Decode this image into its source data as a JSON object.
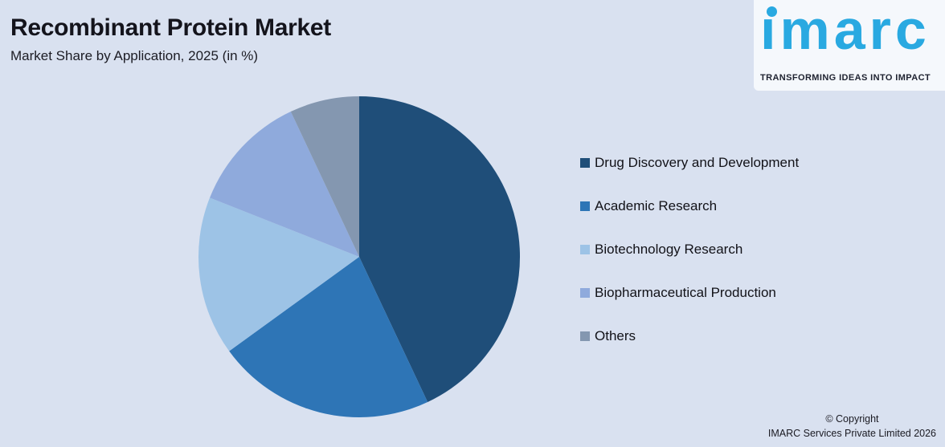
{
  "background_color": "#D9E1F0",
  "header": {
    "title": "Recombinant Protein Market",
    "subtitle": "Market Share by Application, 2025 (in %)"
  },
  "logo": {
    "brand": "ımarc",
    "brand_display": "imarc",
    "tagline": "TRANSFORMING IDEAS INTO IMPACT",
    "brand_color": "#29A9E1"
  },
  "chart_data": {
    "type": "pie",
    "title": "Recombinant Protein Market",
    "subtitle": "Market Share by Application, 2025 (in %)",
    "unit": "%",
    "start_angle_deg": 0,
    "direction": "clockwise",
    "legend_position": "right",
    "data_labels_shown": false,
    "labels": [
      "Drug Discovery and Development",
      "Academic Research",
      "Biotechnology Research",
      "Biopharmaceutical Production",
      "Others"
    ],
    "values": [
      43,
      22,
      16,
      12,
      7
    ],
    "colors": [
      "#1F4E79",
      "#2E75B6",
      "#9DC3E6",
      "#8FAADC",
      "#8497B0"
    ]
  },
  "footer": {
    "line1": "© Copyright",
    "line2": "IMARC Services Private Limited 2026"
  }
}
